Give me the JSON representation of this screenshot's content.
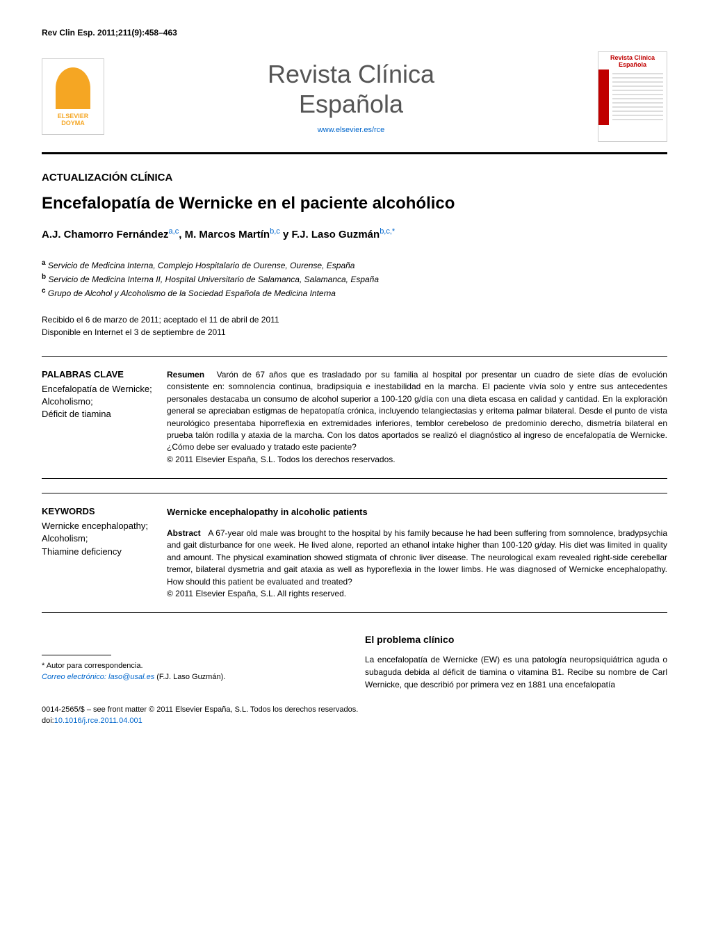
{
  "citation": "Rev Clin Esp. 2011;211(9):458–463",
  "header": {
    "publisher": "ELSEVIER DOYMA",
    "journal_title_line1": "Revista Clínica",
    "journal_title_line2": "Española",
    "url": "www.elsevier.es/rce",
    "cover_title": "Revista Clínica Española"
  },
  "article": {
    "section_type": "ACTUALIZACIÓN CLÍNICA",
    "title": "Encefalopatía de Wernicke en el paciente alcohólico",
    "authors_html": "A.J. Chamorro Fernández",
    "author1": "A.J. Chamorro Fernández",
    "author1_sup": "a,c",
    "author_sep1": ", ",
    "author2": "M. Marcos Martín",
    "author2_sup": "b,c",
    "author_sep2": " y ",
    "author3": "F.J. Laso Guzmán",
    "author3_sup": "b,c,*",
    "affiliations": {
      "a": "Servicio de Medicina Interna, Complejo Hospitalario de Ourense, Ourense, España",
      "b": "Servicio de Medicina Interna II, Hospital Universitario de Salamanca, Salamanca, España",
      "c": "Grupo de Alcohol y Alcoholismo de la Sociedad Española de Medicina Interna"
    },
    "dates": {
      "received_accepted": "Recibido el 6 de marzo de 2011; aceptado el 11 de abril de 2011",
      "online": "Disponible en Internet el 3 de septiembre de 2011"
    }
  },
  "abstract_es": {
    "keywords_title": "PALABRAS CLAVE",
    "keywords": "Encefalopatía de Wernicke;\nAlcoholismo;\nDéficit de tiamina",
    "label": "Resumen",
    "text": "Varón de 67 años que es trasladado por su familia al hospital por presentar un cuadro de siete días de evolución consistente en: somnolencia continua, bradipsiquia e inestabilidad en la marcha. El paciente vivía solo y entre sus antecedentes personales destacaba un consumo de alcohol superior a 100-120 g/día con una dieta escasa en calidad y cantidad. En la exploración general se apreciaban estigmas de hepatopatía crónica, incluyendo telangiectasias y eritema palmar bilateral. Desde el punto de vista neurológico presentaba hiporreflexia en extremidades inferiores, temblor cerebeloso de predominio derecho, dismetría bilateral en prueba talón rodilla y ataxia de la marcha. Con los datos aportados se realizó el diagnóstico al ingreso de encefalopatía de Wernicke. ¿Cómo debe ser evaluado y tratado este paciente?",
    "copyright": "© 2011 Elsevier España, S.L. Todos los derechos reservados."
  },
  "abstract_en": {
    "keywords_title": "KEYWORDS",
    "keywords": "Wernicke encephalopathy;\nAlcoholism;\nThiamine deficiency",
    "title": "Wernicke encephalopathy in alcoholic patients",
    "label": "Abstract",
    "text": "A 67-year old male was brought to the hospital by his family because he had been suffering from somnolence, bradypsychia and gait disturbance for one week. He lived alone, reported an ethanol intake higher than 100-120 g/day. His diet was limited in quality and amount. The physical examination showed stigmata of chronic liver disease. The neurological exam revealed right-side cerebellar tremor, bilateral dysmetria and gait ataxia as well as hyporeflexia in the lower limbs. He was diagnosed of Wernicke encephalopathy. How should this patient be evaluated and treated?",
    "copyright": "© 2011 Elsevier España, S.L. All rights reserved."
  },
  "body": {
    "section_heading": "El problema clínico",
    "paragraph": "La encefalopatía de Wernicke (EW) es una patología neuropsiquiátrica aguda o subaguda debida al déficit de tiamina o vitamina B1. Recibe su nombre de Carl Wernicke, que describió por primera vez en 1881 una encefalopatía"
  },
  "footnote": {
    "corresponding": "* Autor para correspondencia.",
    "email_label": "Correo electrónico:",
    "email": "laso@usal.es",
    "email_author": "(F.J. Laso Guzmán)."
  },
  "footer": {
    "issn_line": "0014-2565/$ – see front matter © 2011 Elsevier España, S.L. Todos los derechos reservados.",
    "doi_label": "doi:",
    "doi": "10.1016/j.rce.2011.04.001"
  },
  "colors": {
    "link": "#0066cc",
    "elsevier": "#f5a623",
    "cover_red": "#c00000"
  }
}
